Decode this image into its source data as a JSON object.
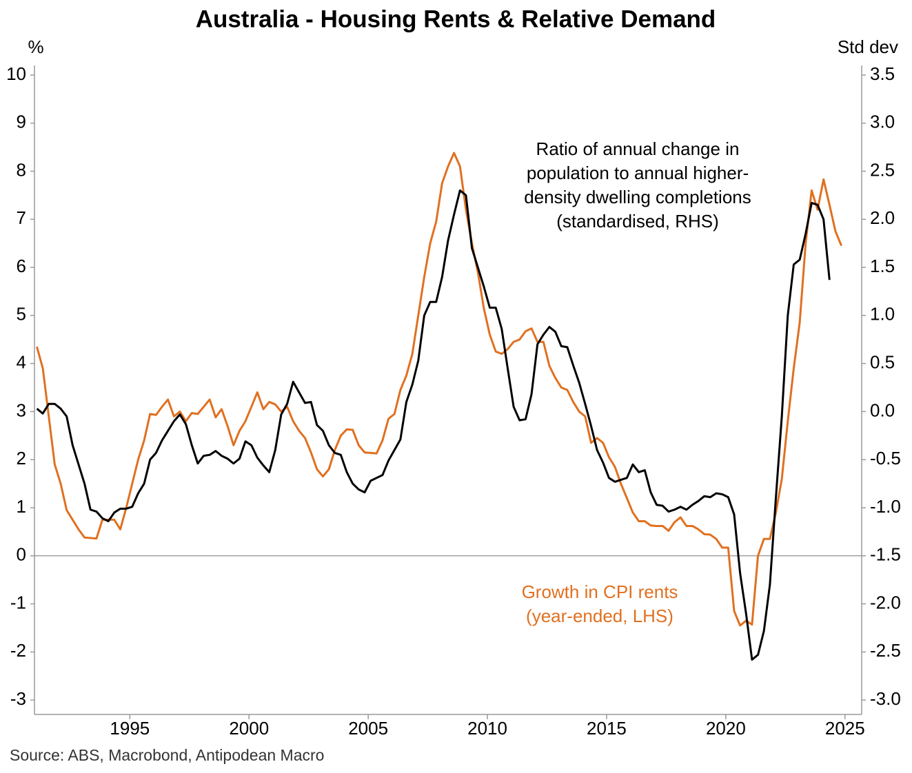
{
  "chart_data": {
    "type": "line",
    "title": "Australia - Housing Rents & Relative Demand",
    "y_label": "%",
    "y2_label": "Std dev",
    "source": "Source: ABS, Macrobond, Antipodean Macro",
    "annotations": [
      {
        "text": [
          "Ratio of annual change in",
          "population to annual higher-",
          "density dwelling completions",
          "(standardised, RHS)"
        ],
        "color": "#000000"
      },
      {
        "text": [
          "Growth in CPI rents",
          "(year-ended, LHS)"
        ],
        "color": "#e07020"
      }
    ],
    "xlim": [
      1991.0,
      2025.7
    ],
    "xticks": [
      1995,
      2000,
      2005,
      2010,
      2015,
      2020,
      2025
    ],
    "ylim": [
      -3.3,
      10.2
    ],
    "yticks": [
      -3,
      -2,
      -1,
      0,
      1,
      2,
      3,
      4,
      5,
      6,
      7,
      8,
      9,
      10
    ],
    "y2lim": [
      -3.15,
      3.6
    ],
    "y2ticks": [
      {
        "value": -3,
        "label": "-3.0"
      },
      -2.5,
      {
        "value": -2,
        "label": "-2.0"
      },
      -1.5,
      {
        "value": -1,
        "label": "-1.0"
      },
      -0.5,
      {
        "value": 0,
        "label": "0.0"
      },
      0.5,
      {
        "value": 1,
        "label": "1.0"
      },
      1.5,
      {
        "value": 2,
        "label": "2.0"
      },
      2.5,
      {
        "value": 3,
        "label": "3.0"
      },
      3.5
    ],
    "zero_line": true,
    "x": [
      1991.1,
      1991.35,
      1991.6,
      1991.85,
      1992.1,
      1992.35,
      1992.6,
      1992.85,
      1993.1,
      1993.35,
      1993.6,
      1993.85,
      1994.1,
      1994.35,
      1994.6,
      1994.85,
      1995.1,
      1995.35,
      1995.6,
      1995.85,
      1996.1,
      1996.35,
      1996.6,
      1996.85,
      1997.1,
      1997.35,
      1997.6,
      1997.85,
      1998.1,
      1998.35,
      1998.6,
      1998.85,
      1999.1,
      1999.35,
      1999.6,
      1999.85,
      2000.1,
      2000.35,
      2000.6,
      2000.85,
      2001.1,
      2001.35,
      2001.6,
      2001.85,
      2002.1,
      2002.35,
      2002.6,
      2002.85,
      2003.1,
      2003.35,
      2003.6,
      2003.85,
      2004.1,
      2004.35,
      2004.6,
      2004.85,
      2005.1,
      2005.35,
      2005.6,
      2005.85,
      2006.1,
      2006.35,
      2006.6,
      2006.85,
      2007.1,
      2007.35,
      2007.6,
      2007.85,
      2008.1,
      2008.35,
      2008.6,
      2008.85,
      2009.1,
      2009.35,
      2009.6,
      2009.85,
      2010.1,
      2010.35,
      2010.6,
      2010.85,
      2011.1,
      2011.35,
      2011.6,
      2011.85,
      2012.1,
      2012.35,
      2012.6,
      2012.85,
      2013.1,
      2013.35,
      2013.6,
      2013.85,
      2014.1,
      2014.35,
      2014.6,
      2014.85,
      2015.1,
      2015.35,
      2015.6,
      2015.85,
      2016.1,
      2016.35,
      2016.6,
      2016.85,
      2017.1,
      2017.35,
      2017.6,
      2017.85,
      2018.1,
      2018.35,
      2018.6,
      2018.85,
      2019.1,
      2019.35,
      2019.6,
      2019.85,
      2020.1,
      2020.35,
      2020.6,
      2020.85,
      2021.1,
      2021.35,
      2021.6,
      2021.85,
      2022.1,
      2022.35,
      2022.6,
      2022.85,
      2023.1,
      2023.35,
      2023.6,
      2023.85,
      2024.1,
      2024.35,
      2024.6,
      2024.85
    ],
    "series": [
      {
        "name": "Growth in CPI rents (year-ended, LHS)",
        "color": "#e07020",
        "axis": "y",
        "values": [
          4.35,
          3.9,
          2.9,
          1.9,
          1.5,
          0.95,
          0.75,
          0.55,
          0.38,
          0.37,
          0.36,
          0.75,
          0.75,
          0.75,
          0.55,
          1.0,
          1.5,
          2.0,
          2.4,
          2.95,
          2.93,
          3.1,
          3.25,
          2.9,
          3.0,
          2.8,
          2.97,
          2.95,
          3.1,
          3.25,
          2.88,
          3.05,
          2.7,
          2.3,
          2.6,
          2.8,
          3.1,
          3.4,
          3.05,
          3.2,
          3.15,
          3.0,
          3.1,
          2.8,
          2.6,
          2.45,
          2.15,
          1.8,
          1.65,
          1.8,
          2.2,
          2.5,
          2.63,
          2.62,
          2.3,
          2.15,
          2.14,
          2.13,
          2.4,
          2.85,
          2.95,
          3.45,
          3.75,
          4.2,
          5.0,
          5.8,
          6.5,
          6.95,
          7.75,
          8.1,
          8.38,
          8.1,
          7.2,
          6.5,
          5.9,
          5.15,
          4.6,
          4.25,
          4.2,
          4.3,
          4.45,
          4.5,
          4.67,
          4.73,
          4.45,
          4.45,
          3.95,
          3.7,
          3.5,
          3.45,
          3.2,
          3.0,
          2.9,
          2.35,
          2.45,
          2.35,
          2.05,
          1.85,
          1.5,
          1.2,
          0.9,
          0.72,
          0.72,
          0.63,
          0.62,
          0.62,
          0.52,
          0.7,
          0.8,
          0.62,
          0.62,
          0.55,
          0.45,
          0.44,
          0.35,
          0.17,
          0.17,
          -1.15,
          -1.45,
          -1.35,
          -1.43,
          0.0,
          0.35,
          0.35,
          0.9,
          1.6,
          2.8,
          3.9,
          4.85,
          6.5,
          7.6,
          7.2,
          7.83,
          7.3,
          6.75,
          6.45
        ]
      },
      {
        "name": "Ratio of annual change in population to annual higher-density dwelling completions (standardised, RHS)",
        "color": "#000000",
        "axis": "y2",
        "values": [
          0.03,
          -0.02,
          0.08,
          0.08,
          0.03,
          -0.05,
          -0.35,
          -0.55,
          -0.75,
          -1.02,
          -1.04,
          -1.11,
          -1.14,
          -1.05,
          -1.01,
          -1.01,
          -0.99,
          -0.85,
          -0.75,
          -0.5,
          -0.43,
          -0.3,
          -0.2,
          -0.1,
          -0.03,
          -0.13,
          -0.35,
          -0.54,
          -0.46,
          -0.45,
          -0.41,
          -0.46,
          -0.49,
          -0.54,
          -0.49,
          -0.31,
          -0.35,
          -0.48,
          -0.56,
          -0.63,
          -0.4,
          -0.03,
          0.08,
          0.31,
          0.2,
          0.09,
          0.1,
          -0.14,
          -0.2,
          -0.35,
          -0.43,
          -0.45,
          -0.63,
          -0.75,
          -0.81,
          -0.84,
          -0.72,
          -0.69,
          -0.66,
          -0.51,
          -0.4,
          -0.29,
          0.1,
          0.28,
          0.53,
          1.0,
          1.14,
          1.14,
          1.4,
          1.78,
          2.05,
          2.3,
          2.25,
          1.7,
          1.5,
          1.3,
          1.08,
          1.08,
          0.86,
          0.45,
          0.05,
          -0.09,
          -0.08,
          0.18,
          0.7,
          0.8,
          0.88,
          0.83,
          0.68,
          0.67,
          0.48,
          0.3,
          0.08,
          -0.15,
          -0.4,
          -0.53,
          -0.69,
          -0.73,
          -0.71,
          -0.69,
          -0.55,
          -0.63,
          -0.61,
          -0.84,
          -0.97,
          -0.98,
          -1.04,
          -1.02,
          -0.99,
          -1.02,
          -0.97,
          -0.93,
          -0.88,
          -0.89,
          -0.85,
          -0.86,
          -0.89,
          -1.07,
          -1.68,
          -2.1,
          -2.58,
          -2.53,
          -2.28,
          -1.8,
          -0.9,
          -0.05,
          1.0,
          1.53,
          1.58,
          1.85,
          2.17,
          2.15,
          2.0,
          1.37,
          null,
          null
        ]
      }
    ]
  }
}
